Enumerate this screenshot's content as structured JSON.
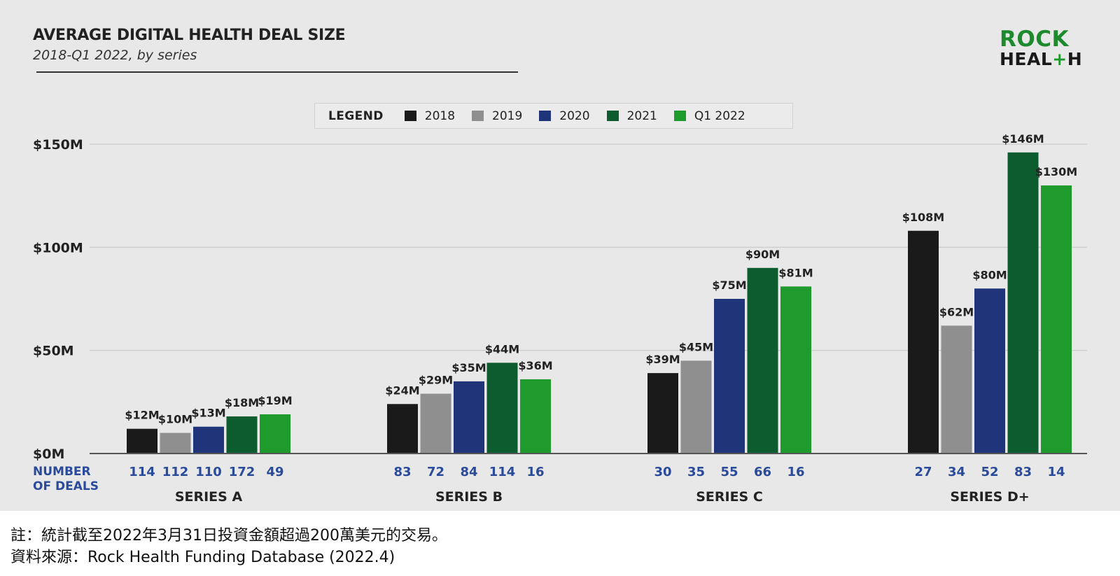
{
  "title": "AVERAGE DIGITAL HEALTH DEAL SIZE",
  "subtitle": "2018-Q1 2022, by series",
  "logo": {
    "line1": "ROCK",
    "line2a": "HEAL",
    "line2plus": "+",
    "line2b": "H",
    "name": "rock-health-logo"
  },
  "legend": {
    "title": "LEGEND",
    "items": [
      {
        "label": "2018",
        "color": "#1a1a1a"
      },
      {
        "label": "2019",
        "color": "#8f8f8f"
      },
      {
        "label": "2020",
        "color": "#1f3479"
      },
      {
        "label": "2021",
        "color": "#0d5c30"
      },
      {
        "label": "Q1 2022",
        "color": "#1f9a2c"
      }
    ]
  },
  "deals_label_line1": "NUMBER",
  "deals_label_line2": "OF DEALS",
  "chart_data": {
    "type": "bar",
    "title": "AVERAGE DIGITAL HEALTH DEAL SIZE",
    "subtitle": "2018-Q1 2022, by series",
    "categories": [
      "SERIES A",
      "SERIES B",
      "SERIES C",
      "SERIES D+"
    ],
    "ylim": [
      0,
      150
    ],
    "yticks": [
      0,
      50,
      100,
      150
    ],
    "ytick_labels": [
      "$0M",
      "$50M",
      "$100M",
      "$150M"
    ],
    "grid": true,
    "legend_position": "top-center",
    "series": [
      {
        "name": "2018",
        "color": "#1a1a1a",
        "values": [
          12,
          24,
          39,
          108
        ],
        "labels": [
          "$12M",
          "$24M",
          "$39M",
          "$108M"
        ],
        "deals": [
          "114",
          "83",
          "30",
          "27"
        ]
      },
      {
        "name": "2019",
        "color": "#8f8f8f",
        "values": [
          10,
          29,
          45,
          62
        ],
        "labels": [
          "$10M",
          "$29M",
          "$45M",
          "$62M"
        ],
        "deals": [
          "112",
          "72",
          "35",
          "34"
        ]
      },
      {
        "name": "2020",
        "color": "#1f3479",
        "values": [
          13,
          35,
          75,
          80
        ],
        "labels": [
          "$13M",
          "$35M",
          "$75M",
          "$80M"
        ],
        "deals": [
          "110",
          "84",
          "55",
          "52"
        ]
      },
      {
        "name": "2021",
        "color": "#0d5c30",
        "values": [
          18,
          44,
          90,
          146
        ],
        "labels": [
          "$18M",
          "$44M",
          "$90M",
          "$146M"
        ],
        "deals": [
          "172",
          "114",
          "66",
          "83"
        ]
      },
      {
        "name": "Q1 2022",
        "color": "#1f9a2c",
        "values": [
          19,
          36,
          81,
          130
        ],
        "labels": [
          "$19M",
          "$36M",
          "$81M",
          "$130M"
        ],
        "deals": [
          "49",
          "16",
          "16",
          "14"
        ]
      }
    ]
  },
  "notes": {
    "line1": "註：統計截至2022年3月31日投資金額超過200萬美元的交易。",
    "line2": "資料來源：Rock Health Funding Database (2022.4)"
  }
}
